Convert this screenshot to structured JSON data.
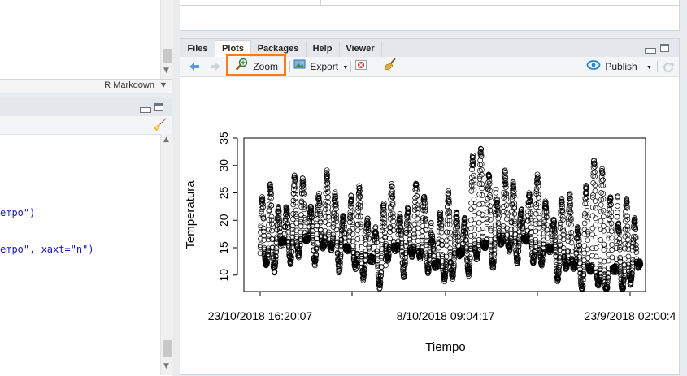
{
  "left": {
    "format_label": "R Markdown",
    "code_lines": [
      {
        "text": "empo\")",
        "top": 255
      },
      {
        "text": "empo\", xaxt=\"n\")",
        "top": 300
      }
    ]
  },
  "tabs": [
    {
      "label": "Files",
      "active": false
    },
    {
      "label": "Plots",
      "active": true
    },
    {
      "label": "Packages",
      "active": false
    },
    {
      "label": "Help",
      "active": false
    },
    {
      "label": "Viewer",
      "active": false
    }
  ],
  "toolbar": {
    "back_icon": "back-arrow-icon",
    "forward_icon": "forward-arrow-icon",
    "zoom_label": "Zoom",
    "export_label": "Export",
    "publish_label": "Publish",
    "highlight_color": "#f57c1f"
  },
  "chart_data": {
    "type": "scatter",
    "title": "",
    "xlabel": "Tiempo",
    "ylabel": "Temperatura",
    "ylim": [
      7,
      35
    ],
    "y_ticks": [
      10,
      15,
      20,
      25,
      30,
      35
    ],
    "x_tick_labels": [
      "23/10/2018 16:20:07",
      "8/10/2018 09:04:17",
      "23/9/2018 02:00:4"
    ],
    "marker": "open-circle",
    "point_count_approx": 3000,
    "y_range_observed": [
      7.5,
      34.5
    ]
  }
}
